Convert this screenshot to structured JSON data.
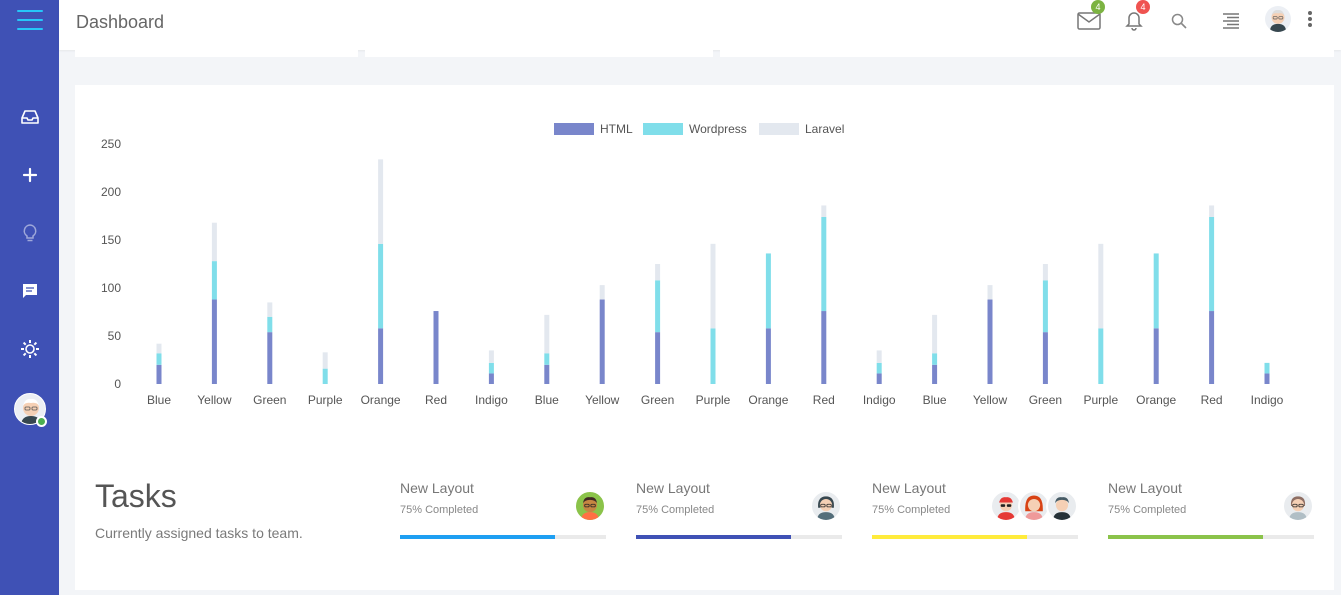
{
  "app": {
    "title": "Dashboard"
  },
  "header": {
    "mail_badge": "4",
    "notif_badge": "4",
    "mail_badge_color": "#7cb342",
    "notif_badge_color": "#ef5350"
  },
  "sidebar": {
    "accent": "#3f51b5",
    "items": [
      {
        "icon": "inbox-icon"
      },
      {
        "icon": "plus-icon"
      },
      {
        "icon": "lightbulb-icon"
      },
      {
        "icon": "message-icon"
      },
      {
        "icon": "settings-icon"
      }
    ]
  },
  "chart_data": {
    "type": "bar",
    "stacked": true,
    "categories": [
      "Blue",
      "Yellow",
      "Green",
      "Purple",
      "Orange",
      "Red",
      "Indigo",
      "Blue",
      "Yellow",
      "Green",
      "Purple",
      "Orange",
      "Red",
      "Indigo",
      "Blue",
      "Yellow",
      "Green",
      "Purple",
      "Orange",
      "Red",
      "Indigo"
    ],
    "series": [
      {
        "name": "HTML",
        "color": "#7986cb",
        "values": [
          20,
          88,
          54,
          0,
          58,
          76,
          11,
          20,
          88,
          54,
          0,
          58,
          76,
          11,
          20,
          88,
          54,
          0,
          58,
          76,
          11
        ]
      },
      {
        "name": "Wordpress",
        "color": "#80deea",
        "values": [
          12,
          40,
          16,
          16,
          88,
          0,
          11,
          12,
          0,
          54,
          58,
          78,
          98,
          11,
          12,
          0,
          54,
          58,
          78,
          98,
          11
        ]
      },
      {
        "name": "Laravel",
        "color": "#e3e8ef",
        "values": [
          10,
          40,
          15,
          17,
          88,
          0,
          13,
          40,
          15,
          17,
          88,
          0,
          12,
          13,
          40,
          15,
          17,
          88,
          0,
          12,
          0
        ]
      }
    ],
    "yticks": [
      0,
      50,
      100,
      150,
      200,
      250
    ],
    "ylim": [
      0,
      250
    ],
    "grid": false,
    "legend_position": "top-center"
  },
  "tasks": {
    "title": "Tasks",
    "subtitle": "Currently assigned tasks to team.",
    "items": [
      {
        "name": "New Layout",
        "progress_text": "75% Completed",
        "progress": 0.75,
        "color": "#1e9ff2",
        "avatars": [
          "avatar-man-glasses"
        ]
      },
      {
        "name": "New Layout",
        "progress_text": "75% Completed",
        "progress": 0.75,
        "color": "#3f51b5",
        "avatars": [
          "avatar-woman"
        ]
      },
      {
        "name": "New Layout",
        "progress_text": "75% Completed",
        "progress": 0.75,
        "color": "#ffeb3b",
        "avatars": [
          "avatar-man-red",
          "avatar-woman-red",
          "avatar-man-dark"
        ]
      },
      {
        "name": "New Layout",
        "progress_text": "75% Completed",
        "progress": 0.75,
        "color": "#8bc34a",
        "avatars": [
          "avatar-woman-2"
        ]
      }
    ]
  }
}
